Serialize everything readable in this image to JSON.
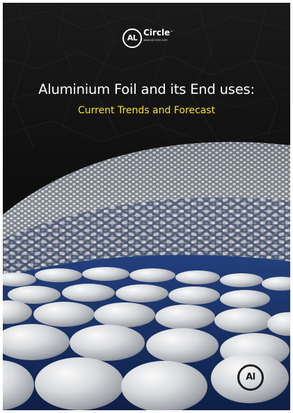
{
  "brand": {
    "logo_mark": "AL",
    "name": "Circle",
    "trademark": "™",
    "url": "www.alcircle.com"
  },
  "cover": {
    "title": "Aluminium Foil and its End uses:",
    "subtitle": "Current Trends and Forecast",
    "badge_mark": "Al"
  },
  "colors": {
    "background_top": "#141414",
    "title_text": "#ffffff",
    "subtitle_text": "#f7e21a",
    "disc_silver": "#cfd2d6",
    "gap_blue": "#1f3f84"
  }
}
